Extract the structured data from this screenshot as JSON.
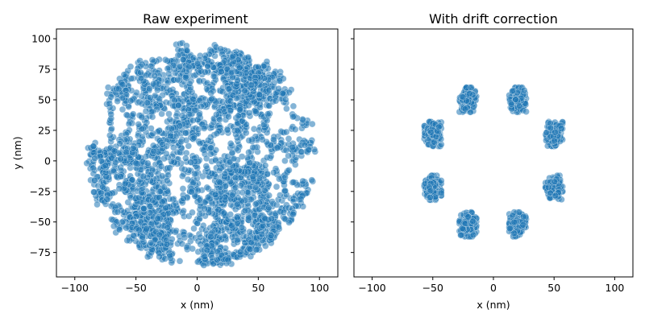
{
  "chart_data": [
    {
      "type": "scatter",
      "title": "Raw experiment",
      "xlabel": "x (nm)",
      "ylabel": "y (nm)",
      "xlim": [
        -115,
        115
      ],
      "ylim": [
        -95,
        108
      ],
      "xticks": [
        -100,
        -50,
        0,
        50,
        100
      ],
      "yticks": [
        -75,
        -50,
        -25,
        0,
        25,
        50,
        75,
        100
      ],
      "grid": false,
      "color": "#1f77b4",
      "point_extent_x": [
        -92,
        98
      ],
      "point_extent_y": [
        -88,
        97
      ]
    },
    {
      "type": "scatter",
      "title": "With drift correction",
      "xlabel": "x (nm)",
      "ylabel": "",
      "xlim": [
        -115,
        115
      ],
      "ylim": [
        -95,
        108
      ],
      "xticks": [
        -100,
        -50,
        0,
        50,
        100
      ],
      "yticks": [
        -75,
        -50,
        -25,
        0,
        25,
        50,
        75,
        100
      ],
      "grid": false,
      "color": "#1f77b4",
      "clusters": [
        {
          "x": -21,
          "y": 50
        },
        {
          "x": 20,
          "y": 50
        },
        {
          "x": -50,
          "y": 22
        },
        {
          "x": 50,
          "y": 22
        },
        {
          "x": -50,
          "y": -22
        },
        {
          "x": 50,
          "y": -22
        },
        {
          "x": -21,
          "y": -52
        },
        {
          "x": 20,
          "y": -52
        }
      ],
      "cluster_spread": 6
    }
  ]
}
